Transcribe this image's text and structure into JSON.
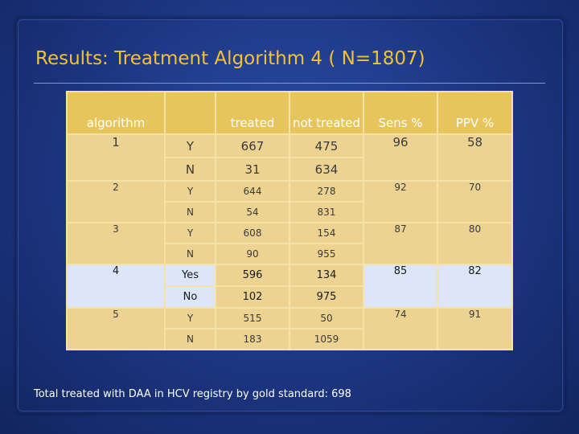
{
  "title": "Results: Treatment Algorithm 4 ( N=1807)",
  "table": {
    "headers": {
      "algorithm": "algorithm",
      "yn": "",
      "treated": "treated",
      "not_treated": "not treated",
      "sens": "Sens %",
      "ppv": "PPV %"
    },
    "rows": [
      {
        "algorithm": "1",
        "yes_label": "Y",
        "no_label": "N",
        "yes_treated": "667",
        "yes_not_treated": "475",
        "no_treated": "31",
        "no_not_treated": "634",
        "sens": "96",
        "ppv": "58"
      },
      {
        "algorithm": "2",
        "yes_label": "Y",
        "no_label": "N",
        "yes_treated": "644",
        "yes_not_treated": "278",
        "no_treated": "54",
        "no_not_treated": "831",
        "sens": "92",
        "ppv": "70"
      },
      {
        "algorithm": "3",
        "yes_label": "Y",
        "no_label": "N",
        "yes_treated": "608",
        "yes_not_treated": "154",
        "no_treated": "90",
        "no_not_treated": "955",
        "sens": "87",
        "ppv": "80"
      },
      {
        "algorithm": "4",
        "yes_label": "Yes",
        "no_label": "No",
        "yes_treated": "596",
        "yes_not_treated": "134",
        "no_treated": "102",
        "no_not_treated": "975",
        "sens": "85",
        "ppv": "82"
      },
      {
        "algorithm": "5",
        "yes_label": "Y",
        "no_label": "N",
        "yes_treated": "515",
        "yes_not_treated": "50",
        "no_treated": "183",
        "no_not_treated": "1059",
        "sens": "74",
        "ppv": "91"
      }
    ]
  },
  "footnote": "Total treated  with DAA in HCV registry by gold standard: 698",
  "colors": {
    "background": "#1c3580",
    "title": "#f2c230",
    "header_fill": "#e6c55c",
    "cell_fill": "#ecd391",
    "highlight_fill": "#dde6f8"
  }
}
